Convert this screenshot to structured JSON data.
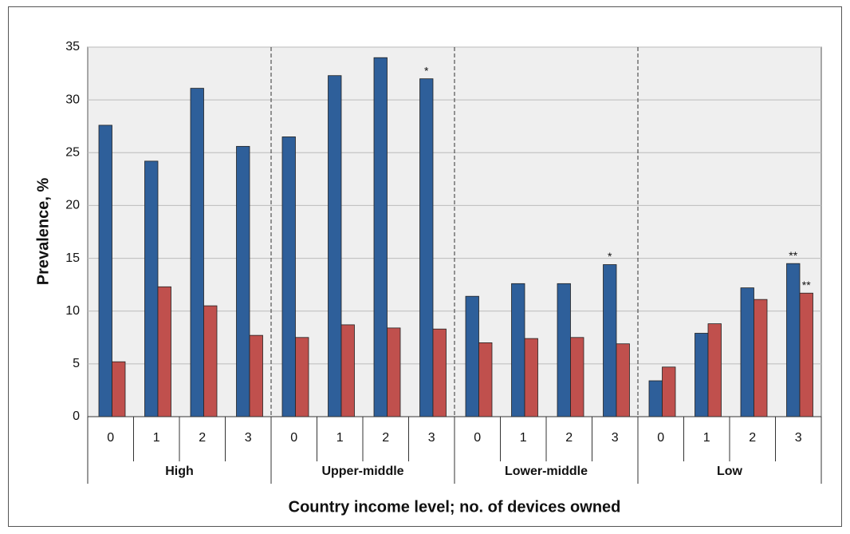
{
  "chart_data": {
    "type": "bar",
    "y_label": "Prevalence, %",
    "x_label": "Country income level; no. of devices owned",
    "categories": [
      "0",
      "1",
      "2",
      "3",
      "0",
      "1",
      "2",
      "3",
      "0",
      "1",
      "2",
      "3",
      "0",
      "1",
      "2",
      "3"
    ],
    "groups": [
      "High",
      "Upper-middle",
      "Lower-middle",
      "Low"
    ],
    "series": [
      {
        "color": "#2e5f9a",
        "values": [
          27.6,
          24.2,
          31.1,
          25.6,
          26.5,
          32.3,
          34.0,
          32.0,
          11.4,
          12.6,
          12.6,
          14.4,
          3.4,
          7.9,
          12.2,
          14.5
        ],
        "annotations": [
          null,
          null,
          null,
          null,
          null,
          null,
          null,
          "*",
          null,
          null,
          null,
          "*",
          null,
          null,
          null,
          "**"
        ]
      },
      {
        "color": "#c0504d",
        "values": [
          5.2,
          12.3,
          10.5,
          7.7,
          7.5,
          8.7,
          8.4,
          8.3,
          7.0,
          7.4,
          7.5,
          6.9,
          4.7,
          8.8,
          11.1,
          11.7
        ],
        "annotations": [
          null,
          null,
          null,
          null,
          null,
          null,
          null,
          null,
          null,
          null,
          null,
          null,
          null,
          null,
          null,
          "**"
        ]
      }
    ],
    "ylim": [
      0,
      35
    ],
    "yticks": [
      0,
      5,
      10,
      15,
      20,
      25,
      30,
      35
    ],
    "grid": true
  }
}
